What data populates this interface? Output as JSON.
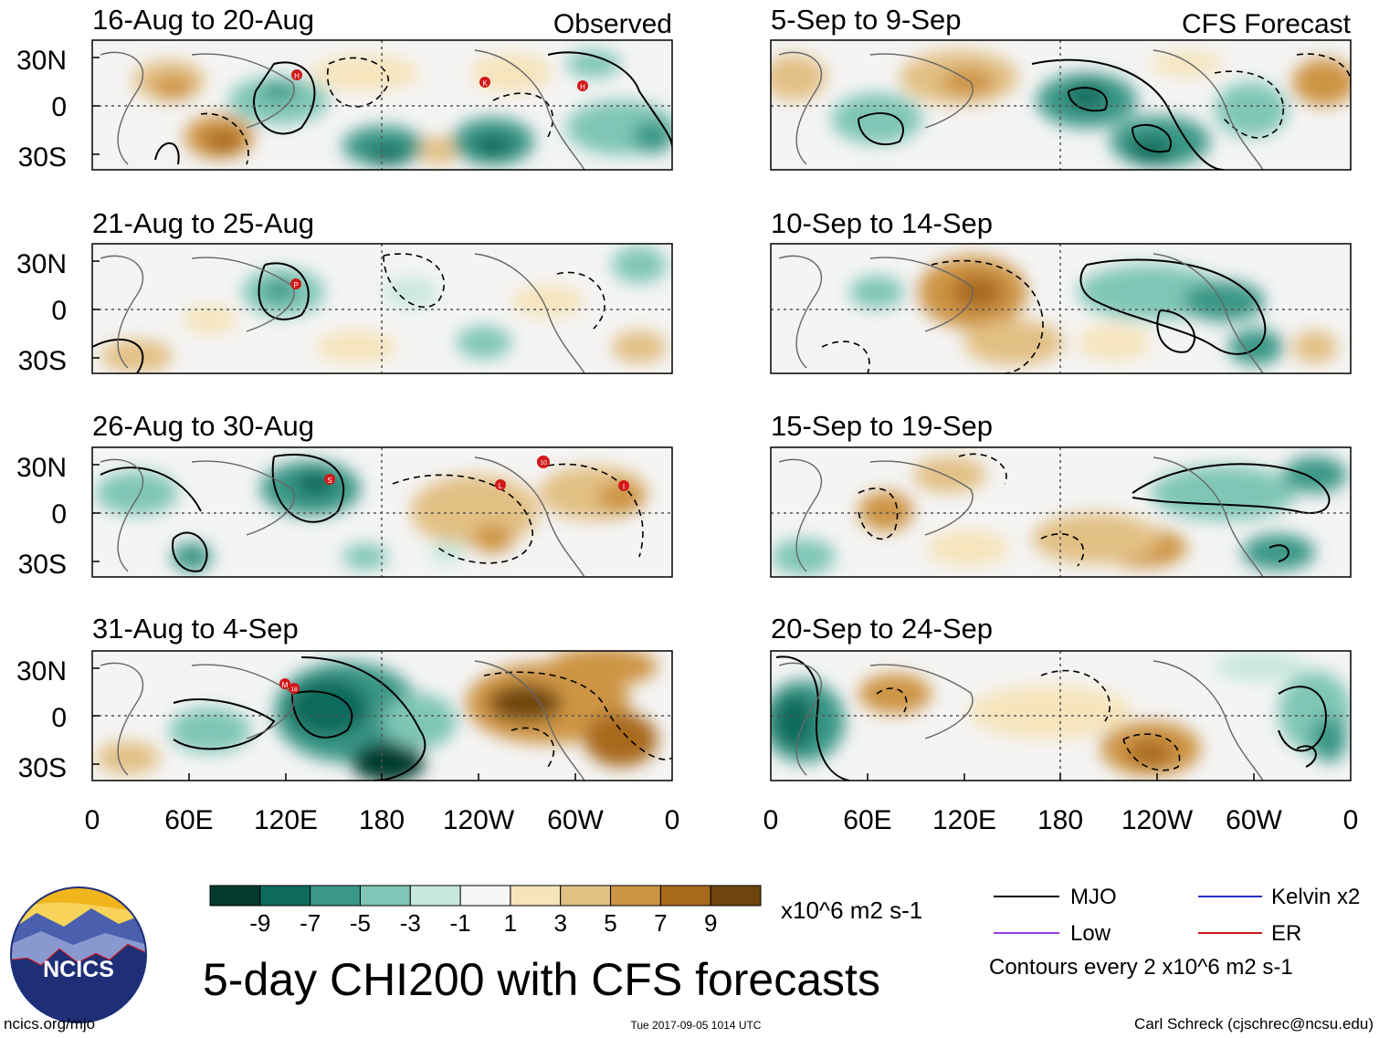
{
  "title": "5-day CHI200 with CFS forecasts",
  "units": "x10^6 m2 s-1",
  "observed_label": "Observed",
  "forecast_label": "CFS Forecast",
  "observed_panels": [
    {
      "label": "16-Aug to 20-Aug",
      "storms": [
        "H",
        "K",
        "H"
      ]
    },
    {
      "label": "21-Aug to 25-Aug",
      "storms": [
        "P"
      ]
    },
    {
      "label": "26-Aug to 30-Aug",
      "storms": [
        "S",
        "L",
        "10",
        "I"
      ]
    },
    {
      "label": "31-Aug to 4-Sep",
      "storms": [
        "M",
        "18"
      ]
    }
  ],
  "forecast_panels": [
    {
      "label": "5-Sep to 9-Sep"
    },
    {
      "label": "10-Sep to 14-Sep"
    },
    {
      "label": "15-Sep to 19-Sep"
    },
    {
      "label": "20-Sep to 24-Sep"
    }
  ],
  "lat_ticks": [
    "30N",
    "0",
    "30S"
  ],
  "lon_ticks": [
    "0",
    "60E",
    "120E",
    "180",
    "120W",
    "60W",
    "0"
  ],
  "colorbar": {
    "labels": [
      "-9",
      "-7",
      "-5",
      "-3",
      "-1",
      "1",
      "3",
      "5",
      "7",
      "9"
    ],
    "colors": [
      "#063a2e",
      "#0f6b5c",
      "#3b9787",
      "#7fc6b6",
      "#c8e8de",
      "#f6f6f6",
      "#f6e4bc",
      "#e2c084",
      "#cd9444",
      "#a8691c",
      "#6e4410"
    ]
  },
  "legend": {
    "items": [
      {
        "label": "MJO",
        "color": "#000000"
      },
      {
        "label": "Kelvin x2",
        "color": "#2030c8"
      },
      {
        "label": "Low",
        "color": "#9a3cd8"
      },
      {
        "label": "ER",
        "color": "#d21818"
      }
    ],
    "contour_note": "Contours every 2 x10^6 m2 s-1"
  },
  "logo_text": "NCICS",
  "footer": {
    "url": "ncics.org/mjo",
    "timestamp": "Tue 2017-09-05 1014 UTC",
    "author": "Carl Schreck (cjschrec@ncsu.edu)"
  }
}
